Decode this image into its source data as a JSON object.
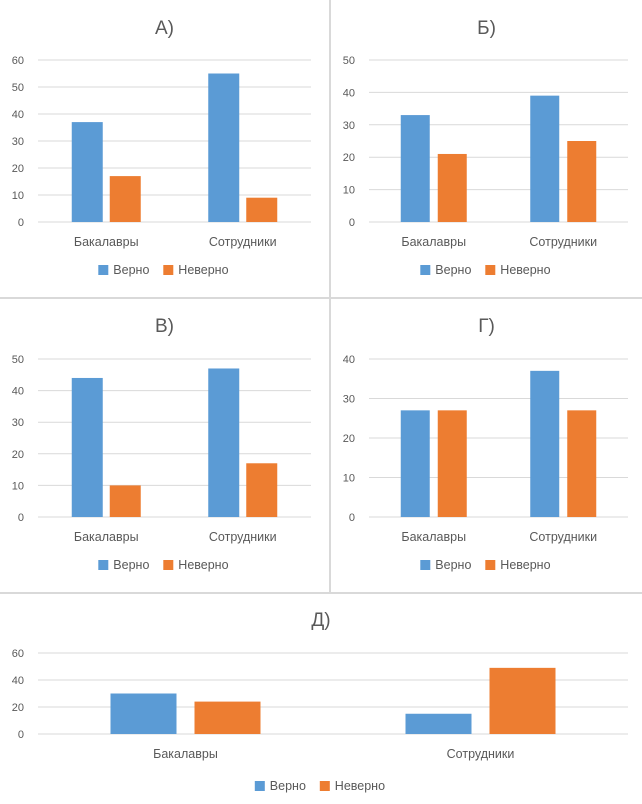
{
  "colors": {
    "verno": "#5B9BD5",
    "neverno": "#ED7D31"
  },
  "chart_data": [
    {
      "type": "bar",
      "title": "А)",
      "categories": [
        "Бакалавры",
        "Сотрудники"
      ],
      "series": [
        {
          "name": "Верно",
          "values": [
            37,
            55
          ]
        },
        {
          "name": "Неверно",
          "values": [
            17,
            9
          ]
        }
      ],
      "yticks": [
        "0",
        "10",
        "20",
        "30",
        "40",
        "50",
        "60"
      ],
      "ylim": [
        0,
        60
      ],
      "xlabel": "",
      "ylabel": "",
      "grid": true,
      "legend": "bottom"
    },
    {
      "type": "bar",
      "title": "Б)",
      "categories": [
        "Бакалавры",
        "Сотрудники"
      ],
      "series": [
        {
          "name": "Верно",
          "values": [
            33,
            39
          ]
        },
        {
          "name": "Неверно",
          "values": [
            21,
            25
          ]
        }
      ],
      "yticks": [
        "0",
        "10",
        "20",
        "30",
        "40",
        "50"
      ],
      "ylim": [
        0,
        50
      ],
      "xlabel": "",
      "ylabel": "",
      "grid": true,
      "legend": "bottom"
    },
    {
      "type": "bar",
      "title": "В)",
      "categories": [
        "Бакалавры",
        "Сотрудники"
      ],
      "series": [
        {
          "name": "Верно",
          "values": [
            44,
            47
          ]
        },
        {
          "name": "Неверно",
          "values": [
            10,
            17
          ]
        }
      ],
      "yticks": [
        "0",
        "10",
        "20",
        "30",
        "40",
        "50"
      ],
      "ylim": [
        0,
        50
      ],
      "xlabel": "",
      "ylabel": "",
      "grid": true,
      "legend": "bottom"
    },
    {
      "type": "bar",
      "title": "Г)",
      "categories": [
        "Бакалавры",
        "Сотрудники"
      ],
      "series": [
        {
          "name": "Верно",
          "values": [
            27,
            37
          ]
        },
        {
          "name": "Неверно",
          "values": [
            27,
            27
          ]
        }
      ],
      "yticks": [
        "0",
        "10",
        "20",
        "30",
        "40"
      ],
      "ylim": [
        0,
        40
      ],
      "xlabel": "",
      "ylabel": "",
      "grid": true,
      "legend": "bottom"
    },
    {
      "type": "bar",
      "title": "Д)",
      "categories": [
        "Бакалавры",
        "Сотрудники"
      ],
      "series": [
        {
          "name": "Верно",
          "values": [
            30,
            15
          ]
        },
        {
          "name": "Неверно",
          "values": [
            24,
            49
          ]
        }
      ],
      "yticks": [
        "0",
        "20",
        "40",
        "60"
      ],
      "ylim": [
        0,
        60
      ],
      "xlabel": "",
      "ylabel": "",
      "grid": true,
      "legend": "bottom"
    }
  ]
}
